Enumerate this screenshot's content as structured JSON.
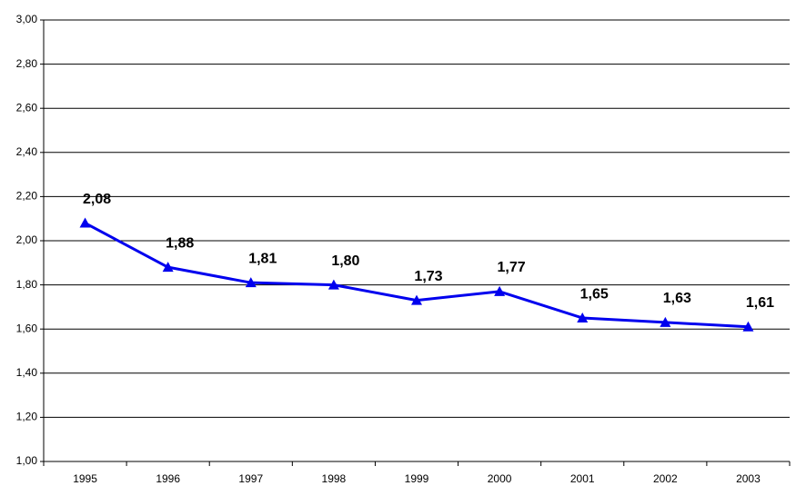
{
  "chart_data": {
    "type": "line",
    "categories": [
      "1995",
      "1996",
      "1997",
      "1998",
      "1999",
      "2000",
      "2001",
      "2002",
      "2003"
    ],
    "series": [
      {
        "color": "#0000ee",
        "values": [
          2.08,
          1.88,
          1.81,
          1.8,
          1.73,
          1.77,
          1.65,
          1.63,
          1.61
        ],
        "value_labels": [
          "2,08",
          "1,88",
          "1,81",
          "1,80",
          "1,73",
          "1,77",
          "1,65",
          "1,63",
          "1,61"
        ]
      }
    ],
    "ylim": [
      1,
      3
    ],
    "yticks": [
      {
        "value": 1,
        "label": "1,00"
      },
      {
        "value": 1.2,
        "label": "1,20"
      },
      {
        "value": 1.4,
        "label": "1,40"
      },
      {
        "value": 1.6,
        "label": "1,60"
      },
      {
        "value": 1.8,
        "label": "1,80"
      },
      {
        "value": 2,
        "label": "2,00"
      },
      {
        "value": 2.2,
        "label": "2,20"
      },
      {
        "value": 2.4,
        "label": "2,40"
      },
      {
        "value": 2.6,
        "label": "2,60"
      },
      {
        "value": 2.8,
        "label": "2,80"
      },
      {
        "value": 3,
        "label": "3,00"
      }
    ],
    "grid": true
  }
}
